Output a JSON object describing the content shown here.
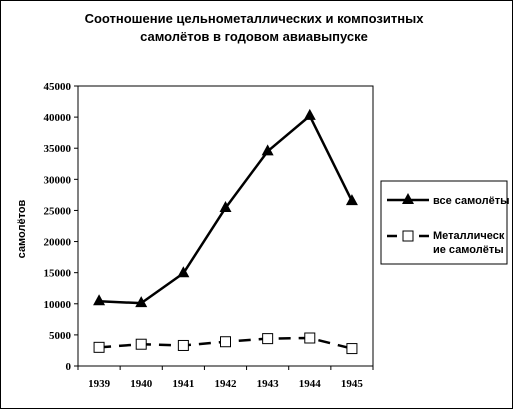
{
  "chart_data": {
    "type": "line",
    "title_lines": [
      "Соотношение цельнометаллических и композитных",
      "самолётов в годовом авиавыпуске"
    ],
    "xlabel": "",
    "ylabel": "самолётов",
    "categories": [
      "1939",
      "1940",
      "1941",
      "1942",
      "1943",
      "1944",
      "1945"
    ],
    "ylim": [
      0,
      45000
    ],
    "yticks": [
      0,
      5000,
      10000,
      15000,
      20000,
      25000,
      30000,
      35000,
      40000,
      45000
    ],
    "grid": false,
    "legend_position": "right",
    "series": [
      {
        "name": "все самолёты",
        "marker": "triangle",
        "line": "solid",
        "values": [
          10400,
          10100,
          14900,
          25400,
          34500,
          40200,
          26500
        ]
      },
      {
        "name_lines": [
          "Металлическ",
          "ие самолёты"
        ],
        "marker": "square",
        "line": "dashed",
        "values": [
          3000,
          3500,
          3300,
          3900,
          4400,
          4500,
          2800
        ]
      }
    ]
  }
}
